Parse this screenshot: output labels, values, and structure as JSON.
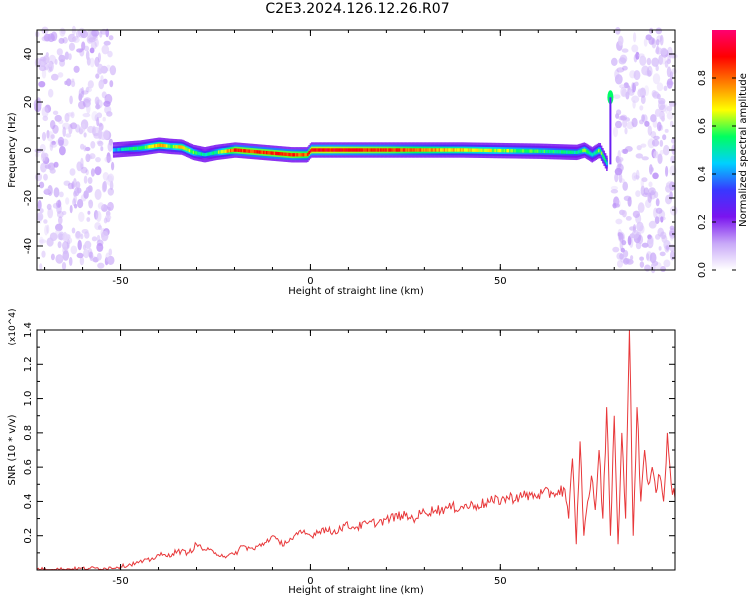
{
  "figure": {
    "title": "C2E3.2024.126.12.26.R07"
  },
  "chart_data": [
    {
      "type": "heatmap",
      "xlabel": "Height of straight line (km)",
      "ylabel": "Frequency (Hz)",
      "xlim": [
        -72,
        96
      ],
      "ylim": [
        -50,
        50
      ],
      "xticks": [
        -50,
        0,
        50
      ],
      "yticks": [
        -40,
        -20,
        0,
        20,
        40
      ],
      "colorbar": {
        "label": "Normalized spectral amplitude",
        "range": [
          0,
          1
        ],
        "ticks": [
          "0.0",
          "0.2",
          "0.4",
          "0.6",
          "0.8"
        ],
        "colormap": [
          "#ffffff",
          "#c8a8f8",
          "#7a14ef",
          "#3838ff",
          "#00d0ff",
          "#00ff60",
          "#ffff00",
          "#ff8000",
          "#ff0000",
          "#ff0070"
        ]
      },
      "ridge": {
        "x": [
          -52,
          -45,
          -40,
          -37,
          -34,
          -31,
          -28,
          -25,
          -20,
          -5,
          -1,
          0,
          5,
          20,
          40,
          60,
          70,
          72,
          74,
          76,
          78,
          79
        ],
        "frequency_hz": [
          0,
          0.8,
          2,
          1.5,
          1.2,
          -1,
          -2,
          -1,
          0,
          -2,
          -2,
          0,
          0,
          0,
          0,
          -0.5,
          -1,
          0,
          -2,
          0,
          -6,
          22
        ],
        "amplitude": [
          0.4,
          0.55,
          0.75,
          0.6,
          0.7,
          0.6,
          0.45,
          0.55,
          0.85,
          0.85,
          0.8,
          0.9,
          0.9,
          0.85,
          0.7,
          0.55,
          0.5,
          0.6,
          0.5,
          0.6,
          0.5,
          0.55
        ]
      },
      "noise_regions_x": [
        [
          -72,
          -52
        ],
        [
          80,
          96
        ]
      ]
    },
    {
      "type": "line",
      "xlabel": "Height of straight line (km)",
      "ylabel": "SNR (10 * v/v)",
      "y_multiplier": "(x10^4)",
      "xlim": [
        -72,
        96
      ],
      "ylim": [
        0,
        1.4
      ],
      "xticks": [
        -50,
        0,
        50
      ],
      "yticks": [
        0.2,
        0.4,
        0.6,
        0.8,
        1.0,
        1.2,
        1.4
      ],
      "color": "#e8383a",
      "series": [
        {
          "x": [
            -72,
            -65,
            -58,
            -54,
            -50,
            -46,
            -42,
            -40,
            -38,
            -35,
            -32,
            -30,
            -28,
            -25,
            -22,
            -20,
            -18,
            -15,
            -12,
            -10,
            -8,
            -5,
            -2,
            0,
            3,
            6,
            9,
            12,
            15,
            18,
            21,
            24,
            27,
            30,
            33,
            36,
            40,
            44,
            48,
            52,
            56,
            60,
            64,
            67,
            68,
            69,
            70,
            71,
            72,
            73,
            74,
            75,
            76,
            77,
            78,
            79,
            80,
            81,
            82,
            83,
            84,
            85,
            86,
            87,
            88,
            89,
            90,
            91,
            92,
            93,
            94,
            95,
            96
          ],
          "values": [
            0.005,
            0.005,
            0.01,
            0.01,
            0.02,
            0.04,
            0.06,
            0.09,
            0.08,
            0.11,
            0.1,
            0.15,
            0.12,
            0.1,
            0.08,
            0.09,
            0.14,
            0.12,
            0.16,
            0.2,
            0.15,
            0.18,
            0.22,
            0.2,
            0.24,
            0.22,
            0.26,
            0.25,
            0.27,
            0.28,
            0.3,
            0.32,
            0.3,
            0.34,
            0.35,
            0.36,
            0.37,
            0.38,
            0.4,
            0.42,
            0.43,
            0.44,
            0.45,
            0.47,
            0.3,
            0.65,
            0.15,
            0.75,
            0.2,
            0.4,
            0.55,
            0.35,
            0.7,
            0.3,
            0.95,
            0.2,
            0.9,
            0.15,
            0.8,
            0.3,
            1.4,
            0.2,
            0.95,
            0.4,
            0.7,
            0.5,
            0.6,
            0.45,
            0.55,
            0.4,
            0.8,
            0.5,
            0.42
          ]
        }
      ]
    }
  ]
}
